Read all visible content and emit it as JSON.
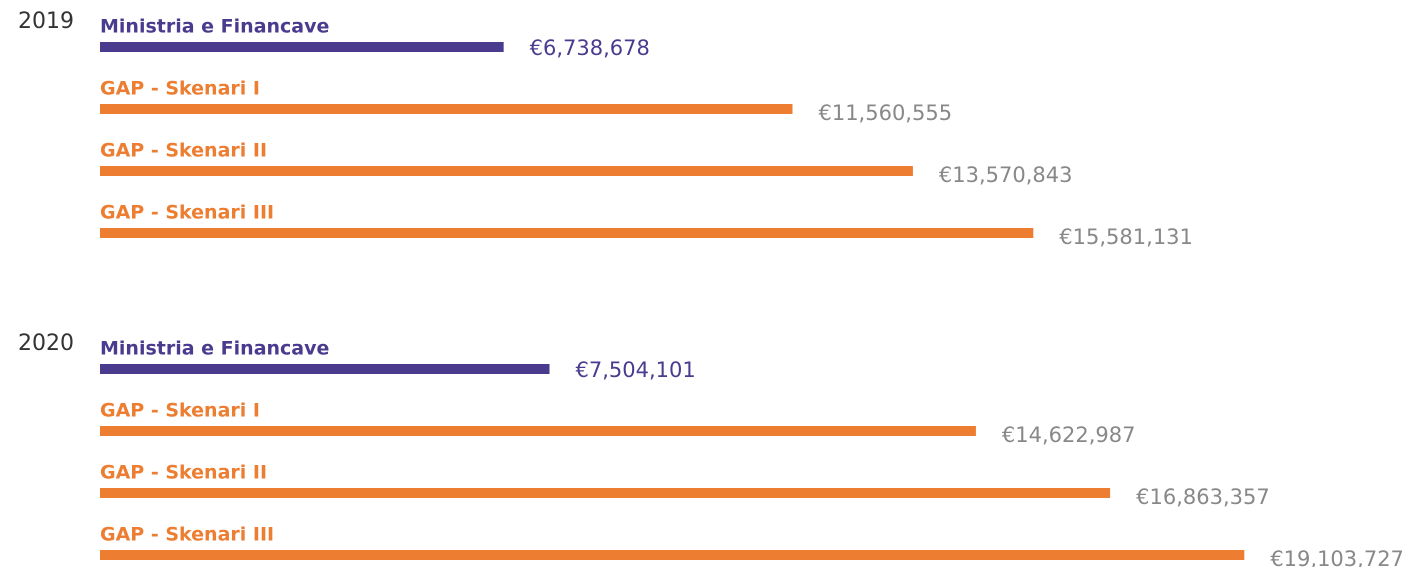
{
  "chart_data": [
    {
      "type": "bar",
      "orientation": "horizontal",
      "title": "2019",
      "categories": [
        "Ministria e Financave",
        "GAP - Skenari I",
        "GAP - Skenari II",
        "GAP - Skenari III"
      ],
      "values": [
        6738678,
        11560555,
        13570843,
        15581131
      ],
      "value_labels": [
        "€6,738,678",
        "€11,560,555",
        "€13,570,843",
        "€15,581,131"
      ],
      "colors": [
        "#4b3b8f",
        "#ed7d31",
        "#ed7d31",
        "#ed7d31"
      ],
      "value_label_colors": [
        "#4b3b8f",
        "#888888",
        "#888888",
        "#888888"
      ]
    },
    {
      "type": "bar",
      "orientation": "horizontal",
      "title": "2020",
      "categories": [
        "Ministria e Financave",
        "GAP - Skenari I",
        "GAP - Skenari II",
        "GAP - Skenari III"
      ],
      "values": [
        7504101,
        14622987,
        16863357,
        19103727
      ],
      "value_labels": [
        "€7,504,101",
        "€14,622,987",
        "€16,863,357",
        "€19,103,727"
      ],
      "colors": [
        "#4b3b8f",
        "#ed7d31",
        "#ed7d31",
        "#ed7d31"
      ],
      "value_label_colors": [
        "#4b3b8f",
        "#888888",
        "#888888",
        "#888888"
      ]
    }
  ]
}
